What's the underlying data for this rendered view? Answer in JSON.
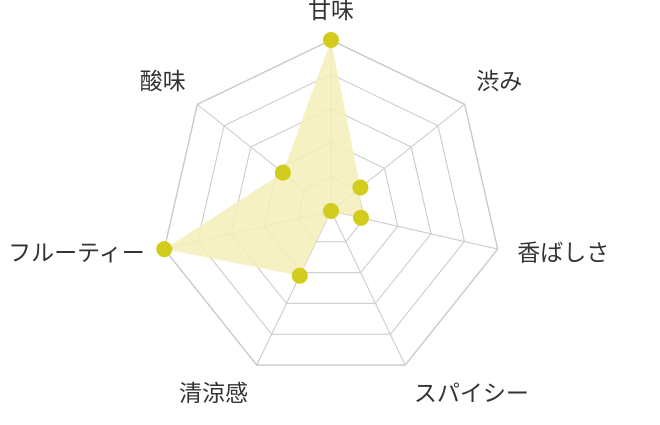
{
  "chart_data": {
    "type": "radar",
    "categories": [
      "甘味",
      "渋み",
      "香ばしさ",
      "スパイシー",
      "清涼感",
      "フルーティー",
      "酸味"
    ],
    "values": [
      5,
      1.1,
      0.9,
      0,
      2.1,
      5,
      1.8
    ],
    "rlim": [
      0,
      5
    ],
    "ring_count": 5,
    "grid": true,
    "legend": "none",
    "colors": {
      "fill": "#f3efb8",
      "point": "#d2cc1c",
      "grid": "#c9c9c9",
      "text": "#333333"
    }
  }
}
